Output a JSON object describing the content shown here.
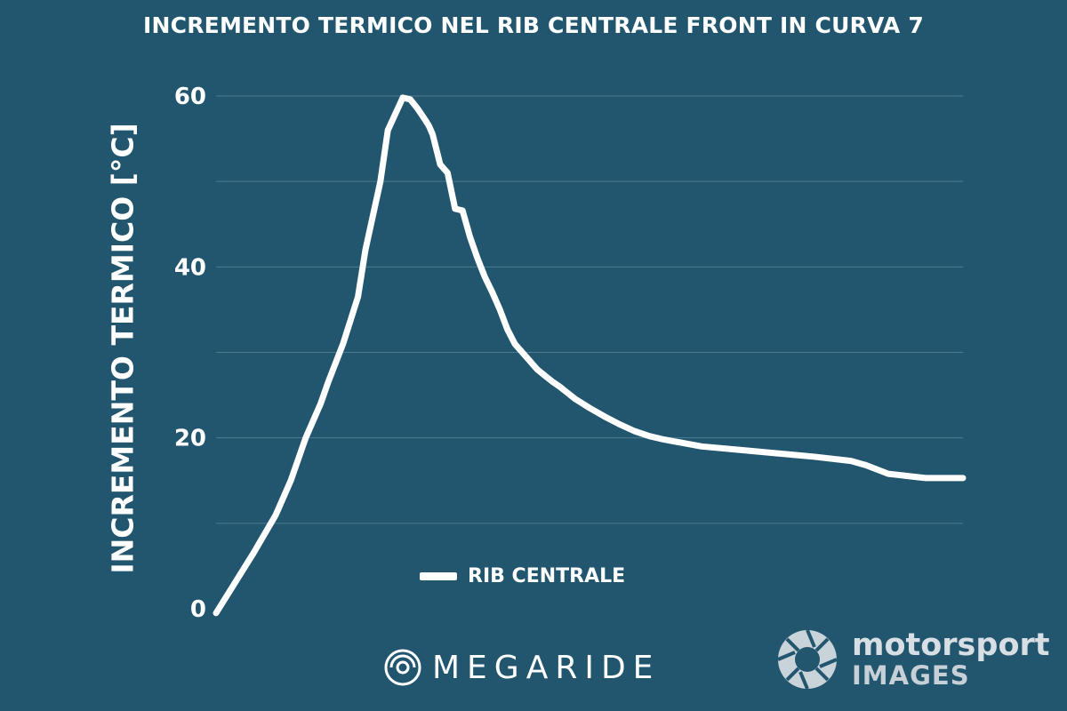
{
  "chart_data": {
    "type": "line",
    "title": "INCREMENTO TERMICO NEL RIB CENTRALE FRONT IN CURVA 7",
    "xlabel": "",
    "ylabel": "INCREMENTO TERMICO [°C]",
    "ylim": [
      0,
      60
    ],
    "yticks": [
      "0",
      "20",
      "40",
      "60"
    ],
    "grid": "horizontal",
    "legend_position": "bottom-center",
    "xlim": [
      0,
      100
    ],
    "series": [
      {
        "name": "RIB CENTRALE",
        "color": "#ffffff",
        "x": [
          0,
          5,
          8,
          10,
          12,
          14,
          15,
          17,
          19,
          20,
          22,
          23,
          25,
          26,
          27,
          28,
          28.5,
          29,
          30,
          31,
          32,
          33,
          34,
          35,
          36,
          37,
          38,
          39,
          40,
          42,
          43,
          44,
          45,
          46,
          47,
          48,
          50,
          52,
          54,
          56,
          58,
          60,
          65,
          70,
          75,
          80,
          85,
          87,
          90,
          95,
          100
        ],
        "values": [
          -0.5,
          6.5,
          11,
          15,
          20,
          24,
          26.5,
          31,
          36.5,
          42,
          50,
          56,
          59.8,
          59.6,
          58.5,
          57.2,
          56.5,
          55.5,
          52,
          51,
          46.8,
          46.6,
          43.5,
          41,
          38.8,
          37,
          35,
          32.7,
          31,
          29,
          28,
          27.3,
          26.6,
          26,
          25.3,
          24.6,
          23.5,
          22.5,
          21.6,
          20.8,
          20.2,
          19.8,
          19.0,
          18.6,
          18.2,
          17.8,
          17.3,
          16.8,
          15.8,
          15.3,
          15.3
        ]
      }
    ]
  },
  "legend": {
    "label": "RIB CENTRALE"
  },
  "logos": {
    "megaride": "MEGARIDE",
    "motorsport_name": "motorsport",
    "motorsport_sub": "IMAGES"
  }
}
